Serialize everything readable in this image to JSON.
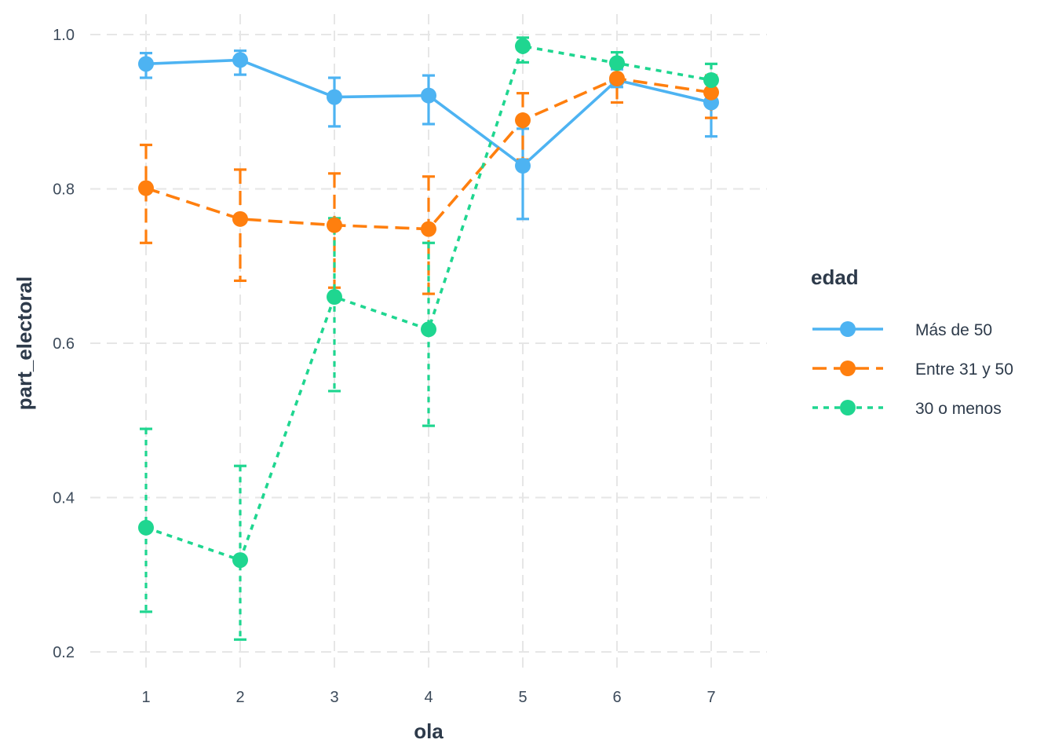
{
  "chart_data": {
    "type": "line",
    "title": "",
    "xlabel": "ola",
    "ylabel": "part_electoral",
    "x": [
      1,
      2,
      3,
      4,
      5,
      6,
      7
    ],
    "xlim": [
      0.65,
      7.6
    ],
    "ylim": [
      0.2,
      1.0
    ],
    "x_ticks": [
      "1",
      "2",
      "3",
      "4",
      "5",
      "6",
      "7"
    ],
    "y_ticks": [
      "0.2",
      "0.4",
      "0.6",
      "0.8",
      "1.0"
    ],
    "y_tick_values": [
      0.2,
      0.4,
      0.6,
      0.8,
      1.0
    ],
    "grid": true,
    "grid_style": "dashed",
    "legend_position": "right",
    "legend_title": "edad",
    "error_bars": true,
    "series": [
      {
        "name": "Más de 50",
        "color": "#4db3f2",
        "line_style": "solid",
        "values": [
          0.962,
          0.967,
          0.919,
          0.921,
          0.83,
          0.941,
          0.912
        ],
        "lower": [
          0.944,
          0.948,
          0.881,
          0.884,
          0.761,
          0.932,
          0.868
        ],
        "upper": [
          0.976,
          0.979,
          0.944,
          0.947,
          0.878,
          0.955,
          0.946
        ]
      },
      {
        "name": "Entre 31 y 50",
        "color": "#ff7f0e",
        "line_style": "dashed",
        "values": [
          0.801,
          0.761,
          0.753,
          0.748,
          0.889,
          0.943,
          0.925
        ],
        "lower": [
          0.73,
          0.681,
          0.672,
          0.664,
          0.838,
          0.912,
          0.892
        ],
        "upper": [
          0.857,
          0.825,
          0.82,
          0.816,
          0.924,
          0.962,
          0.947
        ]
      },
      {
        "name": "30 o menos",
        "color": "#1fd690",
        "line_style": "dotted",
        "values": [
          0.361,
          0.319,
          0.66,
          0.618,
          0.985,
          0.963,
          0.941
        ],
        "lower": [
          0.252,
          0.216,
          0.538,
          0.493,
          0.964,
          0.944,
          0.912
        ],
        "upper": [
          0.489,
          0.441,
          0.762,
          0.73,
          0.996,
          0.977,
          0.962
        ]
      }
    ]
  }
}
